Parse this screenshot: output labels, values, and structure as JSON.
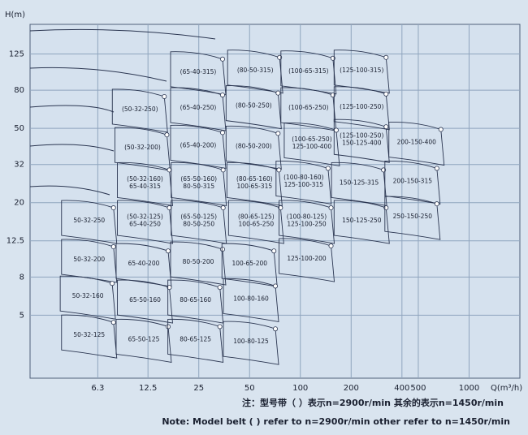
{
  "chart_data": {
    "type": "pump-selection",
    "y_label": "H(m)",
    "x_label": "Q(m³/h)",
    "xscale": "log",
    "yscale": "log",
    "grid": true,
    "xlim": [
      2.5,
      2000
    ],
    "ylim": [
      2.3,
      180
    ],
    "xticks": [
      6.3,
      12.5,
      25,
      50,
      100,
      200,
      400,
      500,
      1000
    ],
    "yticks": [
      5,
      8,
      12.5,
      20,
      32,
      50,
      80,
      125
    ],
    "line_color": "#2a3550",
    "grid_color": "#8fa5be",
    "regions": [
      {
        "lines": [
          "(65-40-315)"
        ],
        "q": 24.8,
        "h": 100
      },
      {
        "lines": [
          "(80-50-315)"
        ],
        "q": 54,
        "h": 102
      },
      {
        "lines": [
          "(100-65-315)"
        ],
        "q": 111.8,
        "h": 101
      },
      {
        "lines": [
          "(125-100-315)"
        ],
        "q": 231,
        "h": 102
      },
      {
        "lines": [
          "(50-32-250)"
        ],
        "q": 11.2,
        "h": 63
      },
      {
        "lines": [
          "(65-40-250)"
        ],
        "q": 24.8,
        "h": 64.2
      },
      {
        "lines": [
          "(80-50-250)"
        ],
        "q": 52.9,
        "h": 65.8
      },
      {
        "lines": [
          "(100-65-250)"
        ],
        "q": 111.8,
        "h": 64.2
      },
      {
        "lines": [
          "(125-100-250)"
        ],
        "q": 231,
        "h": 65
      },
      {
        "lines": [
          "(50-32-200)"
        ],
        "q": 11.6,
        "h": 39.3
      },
      {
        "lines": [
          "(65-40-200)"
        ],
        "q": 24.8,
        "h": 40.4
      },
      {
        "lines": [
          "(80-50-200)"
        ],
        "q": 52.9,
        "h": 40
      },
      {
        "lines": [
          "(100-65-250)",
          "125-100-400"
        ],
        "q": 117,
        "h": 41.6
      },
      {
        "lines": [
          "(125-100-250)",
          "150-125-400"
        ],
        "q": 231,
        "h": 43.4
      },
      {
        "lines": [
          "200-150-400"
        ],
        "q": 488,
        "h": 42
      },
      {
        "lines": [
          "(50-32-160)",
          "65-40-315"
        ],
        "q": 12,
        "h": 25.5
      },
      {
        "lines": [
          "(65-50-160)",
          "80-50-315"
        ],
        "q": 25,
        "h": 25.5
      },
      {
        "lines": [
          "(80-65-160)",
          "100-65-315"
        ],
        "q": 53.5,
        "h": 25.5
      },
      {
        "lines": [
          "(100-80-160)",
          "125-100-315"
        ],
        "q": 104.6,
        "h": 26
      },
      {
        "lines": [
          "150-125-315"
        ],
        "q": 223,
        "h": 25.5
      },
      {
        "lines": [
          "200-150-315"
        ],
        "q": 462,
        "h": 26
      },
      {
        "lines": [
          "50-32-250"
        ],
        "q": 5.6,
        "h": 16
      },
      {
        "lines": [
          "(50-32-125)",
          "65-40-250"
        ],
        "q": 12,
        "h": 16
      },
      {
        "lines": [
          "(65-50-125)",
          "80-50-250"
        ],
        "q": 25,
        "h": 16
      },
      {
        "lines": [
          "(80-65-125)",
          "100-65-250"
        ],
        "q": 54.7,
        "h": 16
      },
      {
        "lines": [
          "(100-80-125)",
          "125-100-250"
        ],
        "q": 109,
        "h": 16
      },
      {
        "lines": [
          "150-125-250"
        ],
        "q": 231,
        "h": 16
      },
      {
        "lines": [
          "250-150-250"
        ],
        "q": 462,
        "h": 16.8
      },
      {
        "lines": [
          "50-32-200"
        ],
        "q": 5.6,
        "h": 9.9
      },
      {
        "lines": [
          "65-40-200"
        ],
        "q": 11.8,
        "h": 9.4
      },
      {
        "lines": [
          "80-50-200"
        ],
        "q": 24.8,
        "h": 9.6
      },
      {
        "lines": [
          "100-65-200"
        ],
        "q": 50,
        "h": 9.4
      },
      {
        "lines": [
          "125-100-200"
        ],
        "q": 109,
        "h": 10
      },
      {
        "lines": [
          "50-32-160"
        ],
        "q": 5.5,
        "h": 6.3
      },
      {
        "lines": [
          "65-50-160"
        ],
        "q": 12,
        "h": 6
      },
      {
        "lines": [
          "80-65-160"
        ],
        "q": 23.9,
        "h": 6
      },
      {
        "lines": [
          "100-80-160"
        ],
        "q": 51,
        "h": 6.1
      },
      {
        "lines": [
          "50-32-125"
        ],
        "q": 5.6,
        "h": 3.9
      },
      {
        "lines": [
          "65-50-125"
        ],
        "q": 11.8,
        "h": 3.7
      },
      {
        "lines": [
          "80-65-125"
        ],
        "q": 23.9,
        "h": 3.7
      },
      {
        "lines": [
          "100-80-125"
        ],
        "q": 51,
        "h": 3.6
      }
    ]
  },
  "notes": [
    "注：型号带（      ）表示n=2900r/min 其余的表示n=1450r/min",
    "Note:  Model belt (      )  refer to n=2900r/min other refer to n=1450r/min"
  ]
}
